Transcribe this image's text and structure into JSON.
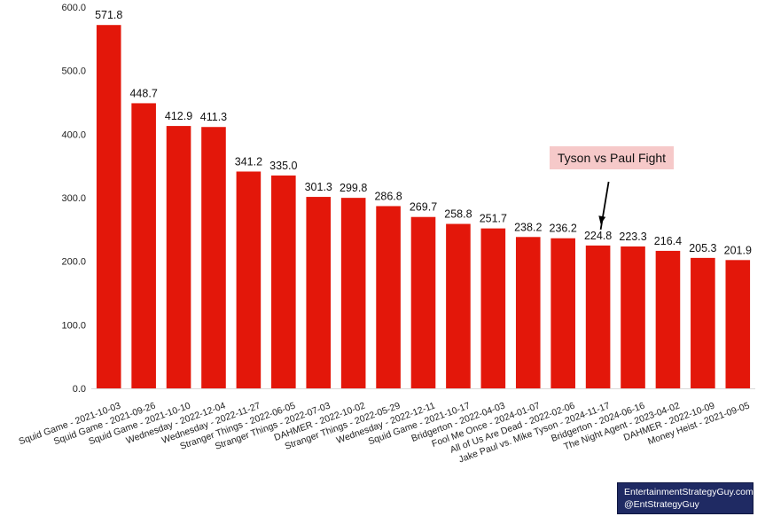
{
  "chart_data": {
    "type": "bar",
    "title": "",
    "xlabel": "",
    "ylabel": "",
    "ylim": [
      0,
      600
    ],
    "yticks": [
      "0.0",
      "100.0",
      "200.0",
      "300.0",
      "400.0",
      "500.0",
      "600.0"
    ],
    "grid": false,
    "bar_color": "#e3170a",
    "categories": [
      "Squid Game - 2021-10-03",
      "Squid Game - 2021-09-26",
      "Squid Game - 2021-10-10",
      "Wednesday - 2022-12-04",
      "Wednesday - 2022-11-27",
      "Stranger Things - 2022-06-05",
      "Stranger Things - 2022-07-03",
      "DAHMER - 2022-10-02",
      "Stranger Things - 2022-05-29",
      "Wednesday - 2022-12-11",
      "Squid Game - 2021-10-17",
      "Bridgerton - 2022-04-03",
      "Fool Me Once - 2024-01-07",
      "All of Us Are Dead - 2022-02-06",
      "Jake Paul vs. Mike Tyson - 2024-11-17",
      "Bridgerton - 2024-06-16",
      "The Night Agent - 2023-04-02",
      "DAHMER - 2022-10-09",
      "Money Heist - 2021-09-05"
    ],
    "values": [
      571.8,
      448.7,
      412.9,
      411.3,
      341.2,
      335.0,
      301.3,
      299.8,
      286.8,
      269.7,
      258.8,
      251.7,
      238.2,
      236.2,
      224.8,
      223.3,
      216.4,
      205.3,
      201.9
    ],
    "data_labels": [
      "571.8",
      "448.7",
      "412.9",
      "411.3",
      "341.2",
      "335.0",
      "301.3",
      "299.8",
      "286.8",
      "269.7",
      "258.8",
      "251.7",
      "238.2",
      "236.2",
      "224.8",
      "223.3",
      "216.4",
      "205.3",
      "201.9"
    ],
    "annotation": {
      "text": "Tyson vs Paul Fight",
      "target_category": "Jake Paul vs. Mike Tyson - 2024-11-17",
      "box_color": "#f6c9c9"
    }
  },
  "credit": {
    "line1": "EntertainmentStrategyGuy.com",
    "line2": "@EntStrategyGuy",
    "background": "#1f2a63"
  }
}
